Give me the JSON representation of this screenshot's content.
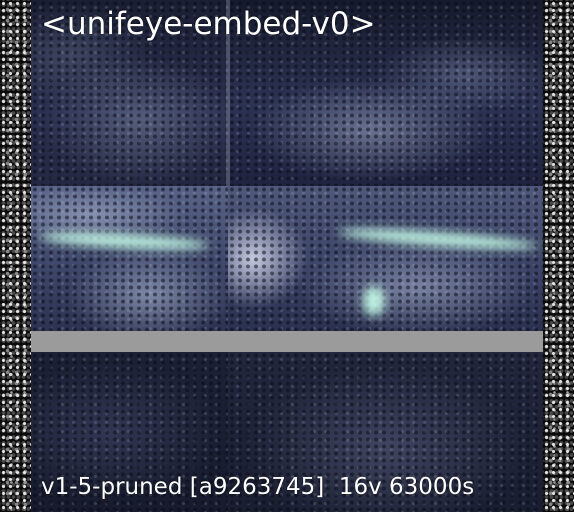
{
  "title": "<unifeye-embed-v0>",
  "footer": "v1-5-pruned [a9263745]  16v 63000s",
  "icons": {
    "grid_image": "medical-scan-image"
  }
}
